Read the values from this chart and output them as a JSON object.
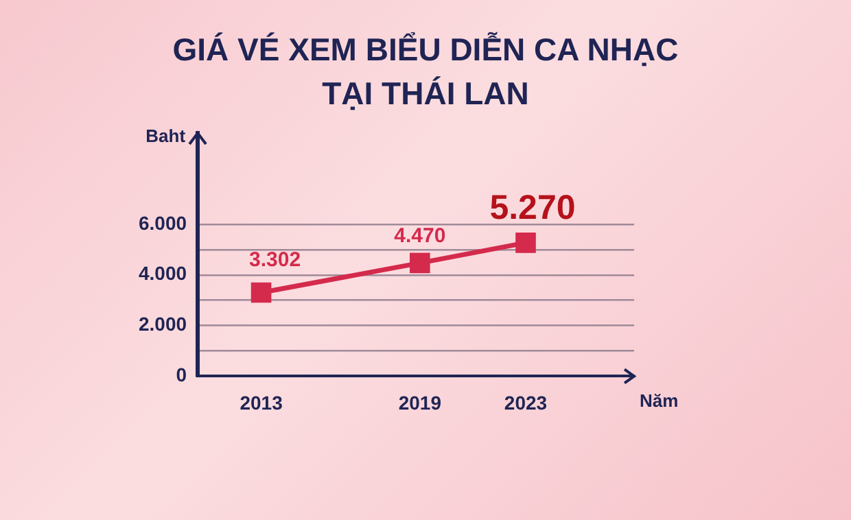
{
  "chart_data": {
    "type": "line",
    "title": "GIÁ VÉ XEM BIỂU DIỄN CA NHẠC\nTẠI THÁI LAN",
    "ylabel": "Baht",
    "xlabel": "Năm",
    "x": [
      2013,
      2019,
      2023
    ],
    "series": [
      {
        "color": "#d42a4c",
        "values": [
          3302,
          4470,
          5270
        ],
        "value_labels": [
          "3.302",
          "4.470",
          "5.270"
        ]
      }
    ],
    "xlim": [
      2010.6,
      2027.1
    ],
    "xticks": [
      2013,
      2019,
      2023
    ],
    "ylim": [
      0,
      9600
    ],
    "yticks": [
      {
        "value": 0,
        "label": "0"
      },
      {
        "value": 1000,
        "label": null
      },
      {
        "value": 2000,
        "label": "2.000"
      },
      {
        "value": 3000,
        "label": null
      },
      {
        "value": 4000,
        "label": "4.000"
      },
      {
        "value": 5000,
        "label": null
      },
      {
        "value": 6000,
        "label": "6.000"
      }
    ],
    "grid": "y",
    "legend": false,
    "marker": "square",
    "line_style": "solid"
  }
}
